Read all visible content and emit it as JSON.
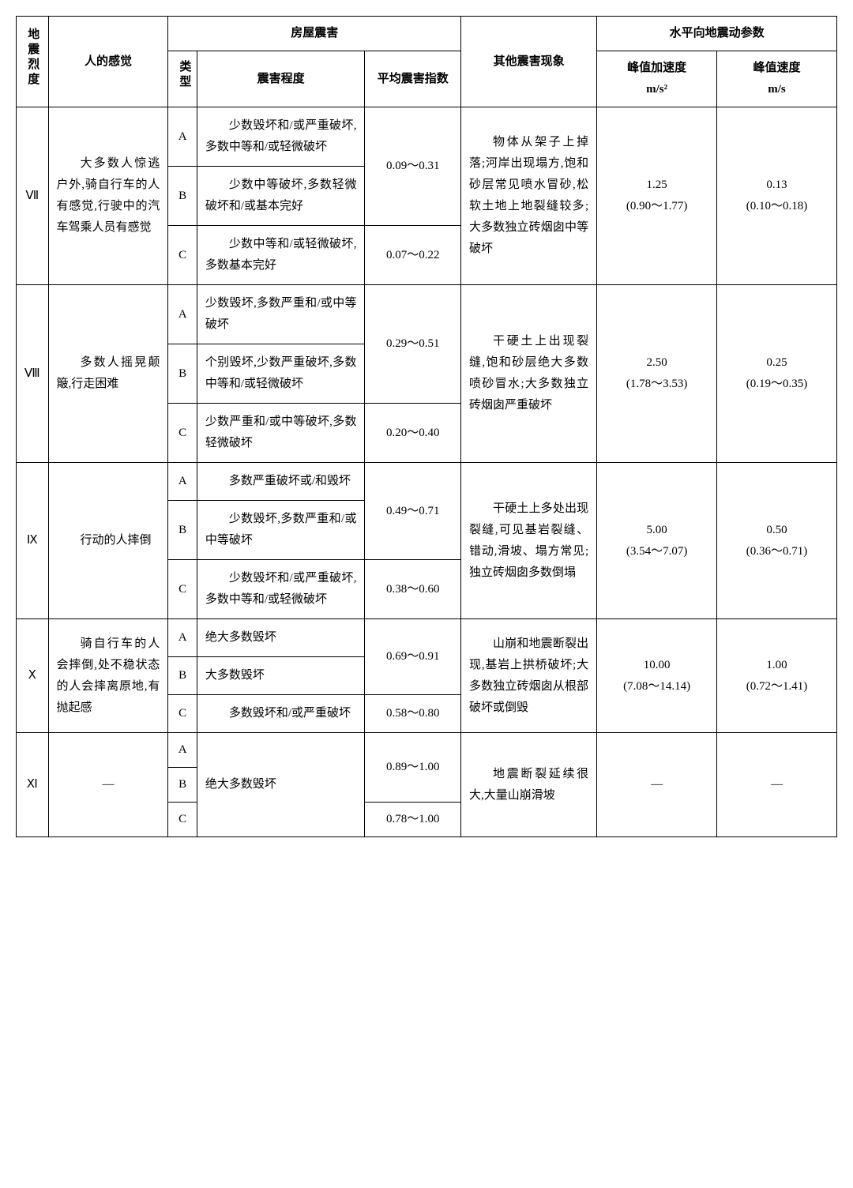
{
  "header": {
    "intensity": "地震烈度",
    "feeling": "人的感觉",
    "building": "房屋震害",
    "type": "类型",
    "degree": "震害程度",
    "index": "平均震害指数",
    "other": "其他震害现象",
    "motion": "水平向地震动参数",
    "accel_l1": "峰值加速度",
    "accel_l2": "m/s²",
    "vel_l1": "峰值速度",
    "vel_l2": "m/s"
  },
  "rows": {
    "r7": {
      "intensity": "Ⅶ",
      "feeling": "大多数人惊逃户外,骑自行车的人有感觉,行驶中的汽车驾乘人员有感觉",
      "A": "少数毁坏和/或严重破坏,多数中等和/或轻微破坏",
      "B": "少数中等破坏,多数轻微破坏和/或基本完好",
      "C": "少数中等和/或轻微破坏,多数基本完好",
      "idx_AB": "0.09～0.31",
      "idx_C": "0.07～0.22",
      "other": "物体从架子上掉落;河岸出现塌方,饱和砂层常见喷水冒砂,松软土地上地裂缝较多;大多数独立砖烟囱中等破坏",
      "accel_l1": "1.25",
      "accel_l2": "(0.90～1.77)",
      "vel_l1": "0.13",
      "vel_l2": "(0.10～0.18)"
    },
    "r8": {
      "intensity": "Ⅷ",
      "feeling": "多数人摇晃颠簸,行走困难",
      "A": "少数毁坏,多数严重和/或中等破坏",
      "B": "个别毁坏,少数严重破坏,多数中等和/或轻微破坏",
      "C": "少数严重和/或中等破坏,多数轻微破坏",
      "idx_AB": "0.29～0.51",
      "idx_C": "0.20～0.40",
      "other": "干硬土上出现裂缝,饱和砂层绝大多数喷砂冒水;大多数独立砖烟囱严重破坏",
      "accel_l1": "2.50",
      "accel_l2": "(1.78～3.53)",
      "vel_l1": "0.25",
      "vel_l2": "(0.19～0.35)"
    },
    "r9": {
      "intensity": "Ⅸ",
      "feeling": "行动的人摔倒",
      "A": "多数严重破坏或/和毁坏",
      "B": "少数毁坏,多数严重和/或中等破坏",
      "C": "少数毁坏和/或严重破坏,多数中等和/或轻微破坏",
      "idx_AB": "0.49～0.71",
      "idx_C": "0.38～0.60",
      "other": "干硬土上多处出现裂缝,可见基岩裂缝、错动,滑坡、塌方常见;独立砖烟囱多数倒塌",
      "accel_l1": "5.00",
      "accel_l2": "(3.54～7.07)",
      "vel_l1": "0.50",
      "vel_l2": "(0.36～0.71)"
    },
    "r10": {
      "intensity": "Ⅹ",
      "feeling": "骑自行车的人会摔倒,处不稳状态的人会摔离原地,有抛起感",
      "A": "绝大多数毁坏",
      "B": "大多数毁坏",
      "C": "多数毁坏和/或严重破坏",
      "idx_AB": "0.69～0.91",
      "idx_C": "0.58～0.80",
      "other": "山崩和地震断裂出现,基岩上拱桥破坏;大多数独立砖烟囱从根部破坏或倒毁",
      "accel_l1": "10.00",
      "accel_l2": "(7.08～14.14)",
      "vel_l1": "1.00",
      "vel_l2": "(0.72～1.41)"
    },
    "r11": {
      "intensity": "Ⅺ",
      "feeling": "—",
      "degree": "绝大多数毁坏",
      "idx_AB": "0.89～1.00",
      "idx_C": "0.78～1.00",
      "other": "地震断裂延续很大,大量山崩滑坡",
      "accel": "—",
      "vel": "—"
    }
  },
  "typeLabels": {
    "A": "A",
    "B": "B",
    "C": "C"
  }
}
